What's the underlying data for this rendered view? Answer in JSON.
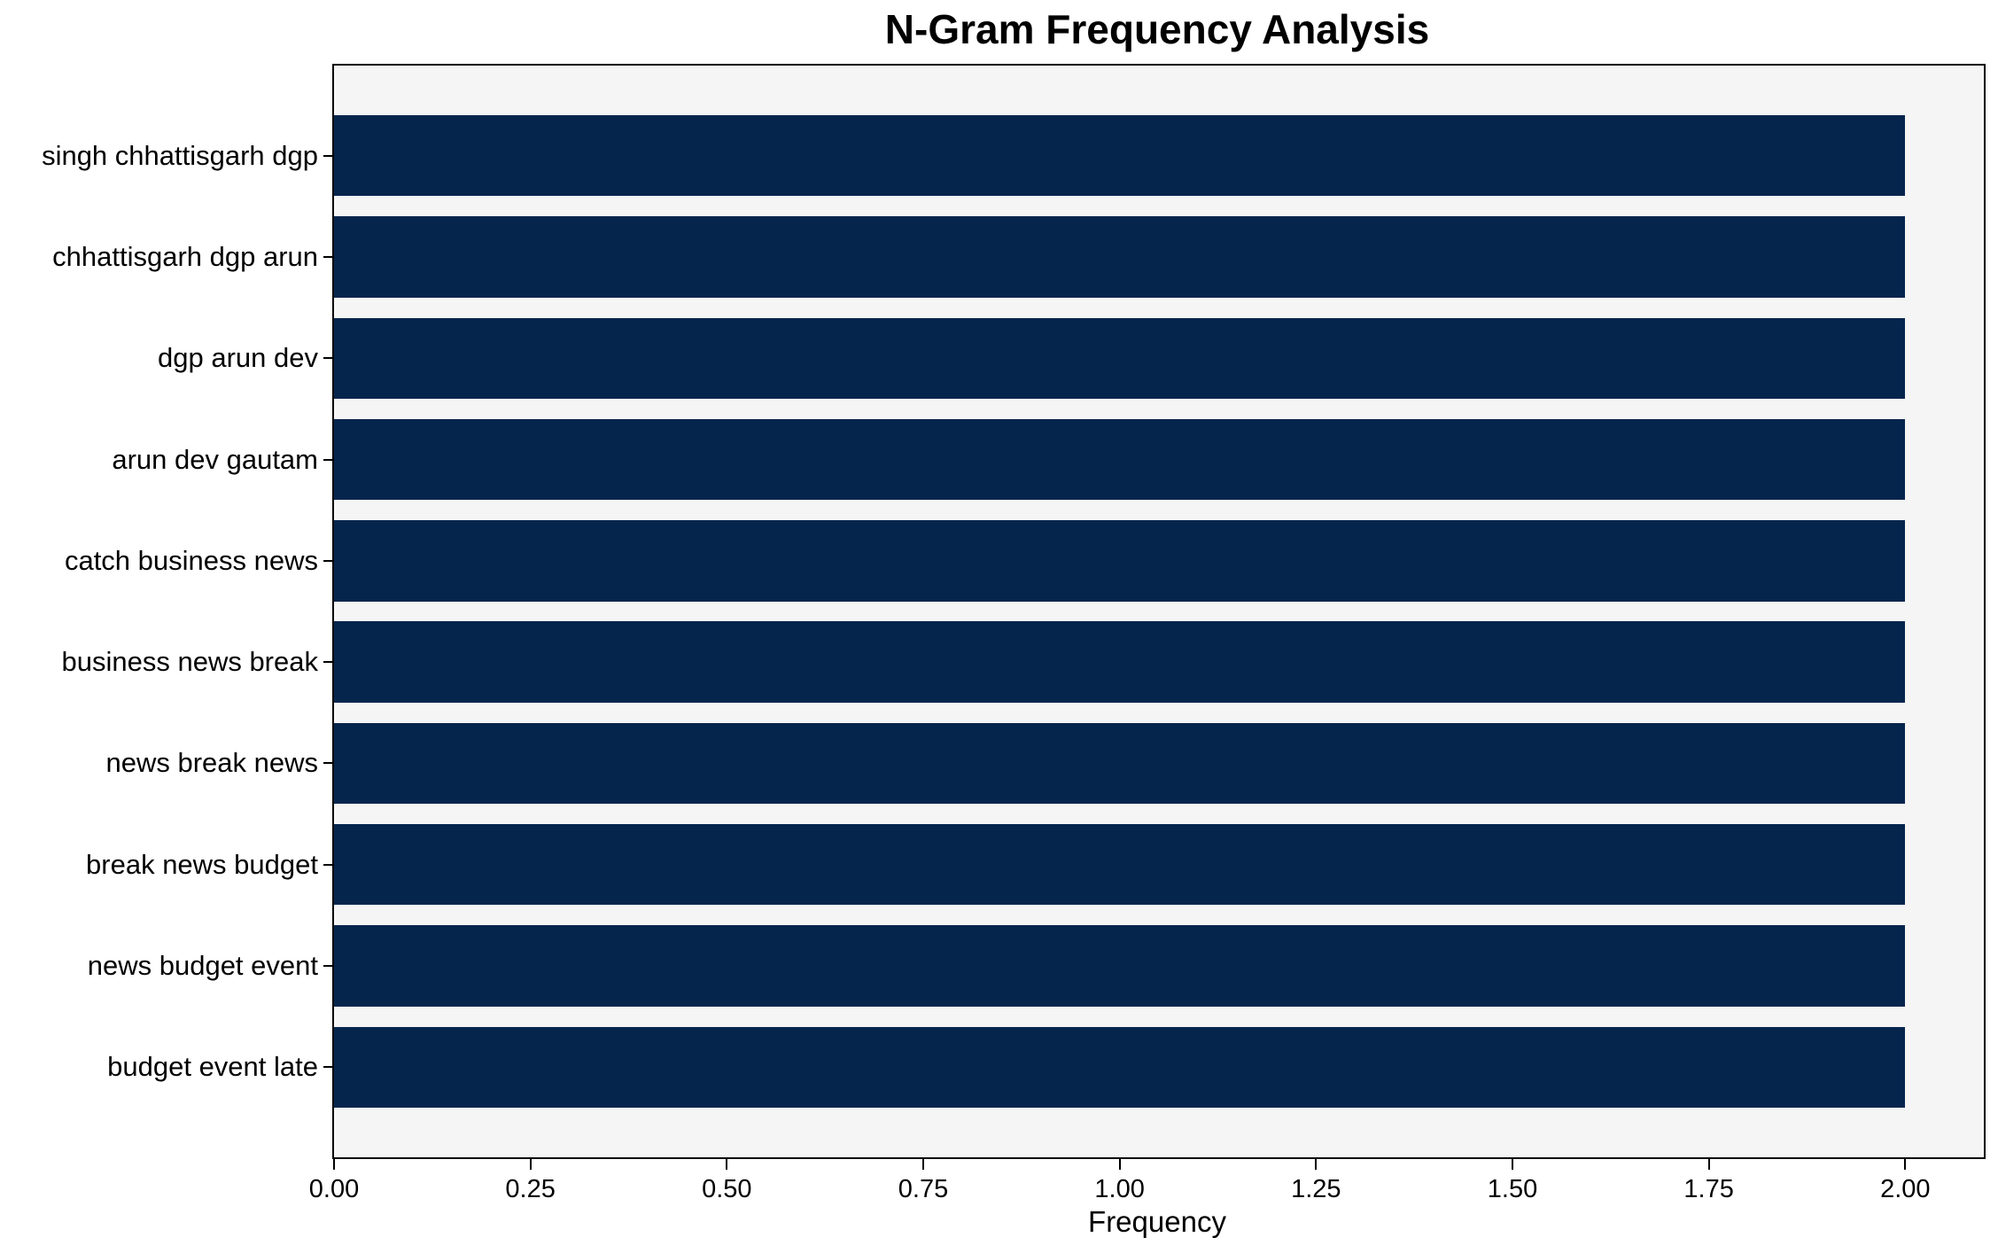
{
  "chart_data": {
    "type": "bar",
    "orientation": "horizontal",
    "title": "N-Gram Frequency Analysis",
    "xlabel": "Frequency",
    "ylabel": "",
    "categories": [
      "singh chhattisgarh dgp",
      "chhattisgarh dgp arun",
      "dgp arun dev",
      "arun dev gautam",
      "catch business news",
      "business news break",
      "news break news",
      "break news budget",
      "news budget event",
      "budget event late"
    ],
    "values": [
      2,
      2,
      2,
      2,
      2,
      2,
      2,
      2,
      2,
      2
    ],
    "xlim": [
      0,
      2.1
    ],
    "xticks": [
      0.0,
      0.25,
      0.5,
      0.75,
      1.0,
      1.25,
      1.5,
      1.75,
      2.0
    ],
    "xtick_labels": [
      "0.00",
      "0.25",
      "0.50",
      "0.75",
      "1.00",
      "1.25",
      "1.50",
      "1.75",
      "2.00"
    ],
    "bar_height_fraction": 0.8,
    "grid": false,
    "legend": false,
    "colors": {
      "bar": "#05254d",
      "plot_background": "#f5f5f5",
      "figure_background": "#ffffff",
      "axis": "#000000",
      "text": "#000000"
    }
  }
}
